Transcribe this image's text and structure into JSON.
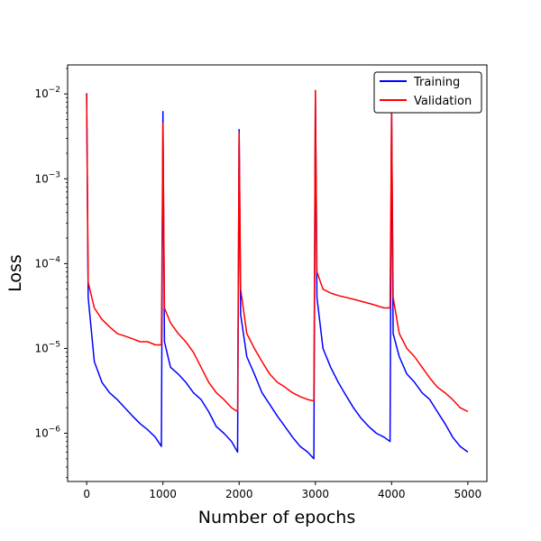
{
  "chart_data": {
    "type": "line",
    "xlabel": "Number of epochs",
    "ylabel": "Loss",
    "xlim": [
      -250,
      5250
    ],
    "ylim": [
      2.7e-07,
      0.022
    ],
    "yscale": "log",
    "x_ticks": [
      0,
      1000,
      2000,
      3000,
      4000,
      5000
    ],
    "x_tick_labels": [
      "0",
      "1000",
      "2000",
      "3000",
      "4000",
      "5000"
    ],
    "y_ticks": [
      1e-06,
      1e-05,
      0.0001,
      0.001,
      0.01
    ],
    "y_tick_labels": [
      {
        "base": "10",
        "exp": "−6"
      },
      {
        "base": "10",
        "exp": "−5"
      },
      {
        "base": "10",
        "exp": "−4"
      },
      {
        "base": "10",
        "exp": "−3"
      },
      {
        "base": "10",
        "exp": "−2"
      }
    ],
    "grid": false,
    "legend_position": "top-right",
    "series": [
      {
        "name": "Training",
        "color": "#0000ff",
        "x": [
          0,
          20,
          100,
          200,
          300,
          400,
          500,
          600,
          700,
          800,
          900,
          980,
          1000,
          1020,
          1100,
          1200,
          1300,
          1400,
          1500,
          1600,
          1700,
          1800,
          1900,
          1980,
          2000,
          2020,
          2100,
          2200,
          2300,
          2400,
          2500,
          2600,
          2700,
          2800,
          2900,
          2980,
          3000,
          3020,
          3100,
          3200,
          3300,
          3400,
          3500,
          3600,
          3700,
          3800,
          3900,
          3980,
          4000,
          4020,
          4100,
          4200,
          4300,
          4400,
          4500,
          4600,
          4700,
          4800,
          4900,
          5000
        ],
        "y": [
          0.0102,
          4e-05,
          7e-06,
          4e-06,
          3e-06,
          2.5e-06,
          2e-06,
          1.6e-06,
          1.3e-06,
          1.1e-06,
          9e-07,
          7e-07,
          0.0062,
          1.2e-05,
          6e-06,
          5e-06,
          4e-06,
          3e-06,
          2.5e-06,
          1.8e-06,
          1.2e-06,
          1e-06,
          8e-07,
          6e-07,
          0.0038,
          2.5e-05,
          8e-06,
          5e-06,
          3e-06,
          2.2e-06,
          1.6e-06,
          1.2e-06,
          9e-07,
          7e-07,
          6e-07,
          5e-07,
          0.0108,
          4e-05,
          1e-05,
          6e-06,
          4e-06,
          2.8e-06,
          2e-06,
          1.5e-06,
          1.2e-06,
          1e-06,
          9e-07,
          8e-07,
          0.0075,
          1.5e-05,
          8e-06,
          5e-06,
          4e-06,
          3e-06,
          2.5e-06,
          1.8e-06,
          1.3e-06,
          9e-07,
          7e-07,
          6e-07
        ]
      },
      {
        "name": "Validation",
        "color": "#ff0000",
        "x": [
          0,
          20,
          100,
          200,
          300,
          400,
          500,
          600,
          700,
          800,
          900,
          980,
          1000,
          1020,
          1100,
          1200,
          1300,
          1400,
          1500,
          1600,
          1700,
          1800,
          1900,
          1980,
          2000,
          2020,
          2100,
          2200,
          2300,
          2400,
          2500,
          2600,
          2700,
          2800,
          2900,
          2980,
          3000,
          3020,
          3100,
          3200,
          3300,
          3400,
          3500,
          3600,
          3700,
          3800,
          3900,
          3980,
          4000,
          4020,
          4100,
          4200,
          4300,
          4400,
          4500,
          4600,
          4700,
          4800,
          4900,
          5000
        ],
        "y": [
          0.0102,
          6e-05,
          3e-05,
          2.2e-05,
          1.8e-05,
          1.5e-05,
          1.4e-05,
          1.3e-05,
          1.2e-05,
          1.2e-05,
          1.1e-05,
          1.1e-05,
          0.0045,
          3e-05,
          2e-05,
          1.5e-05,
          1.2e-05,
          9e-06,
          6e-06,
          4e-06,
          3e-06,
          2.5e-06,
          2e-06,
          1.8e-06,
          0.0035,
          5e-05,
          1.5e-05,
          1e-05,
          7e-06,
          5e-06,
          4e-06,
          3.5e-06,
          3e-06,
          2.7e-06,
          2.5e-06,
          2.4e-06,
          0.011,
          8e-05,
          5e-05,
          4.5e-05,
          4.2e-05,
          4e-05,
          3.8e-05,
          3.6e-05,
          3.4e-05,
          3.2e-05,
          3e-05,
          3e-05,
          0.0065,
          4e-05,
          1.5e-05,
          1e-05,
          8e-06,
          6e-06,
          4.5e-06,
          3.5e-06,
          3e-06,
          2.5e-06,
          2e-06,
          1.8e-06
        ]
      }
    ]
  }
}
